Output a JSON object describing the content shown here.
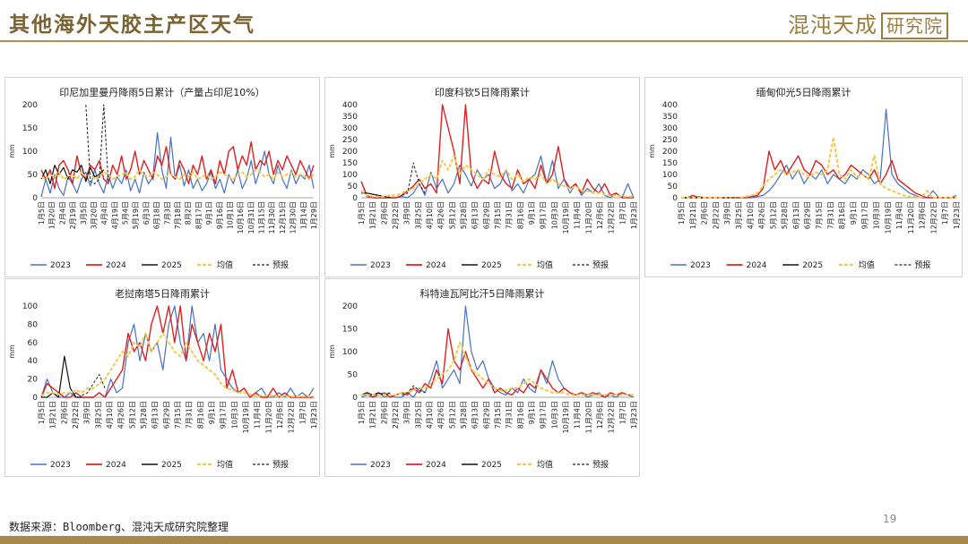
{
  "page": {
    "title": "其他海外天胶主产区天气",
    "logo_text": "混沌天成",
    "logo_box_text": "研究院",
    "source": "数据来源：Bloomberg、混沌天成研究院整理",
    "page_number": "19"
  },
  "legend_labels": [
    "2023",
    "2024",
    "2025",
    "均值",
    "预报"
  ],
  "colors": {
    "2023": "#4472c4",
    "2024": "#e02020",
    "2025": "#111111",
    "mean": "#f2c94c",
    "forecast": "#222222",
    "title": "#7a6232",
    "accent": "#a8884a"
  },
  "chart_data": [
    {
      "type": "line",
      "title": "印尼加里曼丹降雨5日累计（产量占印尼10%）",
      "ylabel": "mm",
      "ylim": [
        0,
        200
      ],
      "yticks": [
        0,
        50,
        100,
        150,
        200
      ],
      "x_tick_labels": [
        "1月5日",
        "1月20日",
        "2月4日",
        "2月19日",
        "3月5日",
        "3月20日",
        "4月4日",
        "4月19日",
        "5月4日",
        "5月19日",
        "6月3日",
        "6月18日",
        "7月3日",
        "7月18日",
        "8月2日",
        "8月17日",
        "9月1日",
        "9月16日",
        "10月1日",
        "10月16日",
        "10月31日",
        "11月15日",
        "11月30日",
        "12月15日",
        "12月30日",
        "1月14日",
        "1月29日"
      ],
      "series": [
        {
          "name": "2023",
          "values": [
            2,
            40,
            10,
            50,
            20,
            5,
            45,
            30,
            10,
            40,
            55,
            25,
            60,
            30,
            10,
            50,
            20,
            45,
            30,
            60,
            15,
            40,
            10,
            55,
            30,
            45,
            140,
            60,
            20,
            130,
            40,
            70,
            25,
            60,
            20,
            40,
            15,
            30,
            55,
            20,
            40,
            10,
            50,
            30,
            60,
            20,
            40,
            80,
            30,
            60,
            100,
            50,
            30,
            70,
            40,
            20,
            60,
            30,
            50,
            40,
            70,
            20
          ]
        },
        {
          "name": "2024",
          "values": [
            60,
            40,
            60,
            20,
            70,
            80,
            60,
            30,
            90,
            50,
            40,
            70,
            60,
            80,
            40,
            30,
            70,
            50,
            90,
            40,
            60,
            100,
            50,
            80,
            60,
            40,
            90,
            70,
            110,
            50,
            40,
            80,
            60,
            30,
            70,
            50,
            90,
            40,
            60,
            30,
            80,
            50,
            100,
            110,
            60,
            90,
            70,
            120,
            60,
            80,
            70,
            100,
            50,
            80,
            60,
            90,
            70,
            50,
            80,
            60,
            40,
            70
          ]
        },
        {
          "name": "2025",
          "values": [
            40,
            60,
            30,
            70,
            50,
            65,
            40,
            60,
            55,
            70,
            35,
            65,
            45,
            50,
            60
          ]
        },
        {
          "name": "均值",
          "values": [
            45,
            40,
            50,
            45,
            55,
            40,
            45,
            50,
            40,
            55,
            45,
            50,
            40,
            45,
            55,
            50,
            40,
            45,
            50,
            55,
            40,
            45,
            60,
            50,
            45,
            55,
            50,
            40,
            45,
            50,
            45,
            40,
            50,
            45,
            55,
            40,
            45,
            50,
            40,
            45,
            55,
            50,
            45,
            40,
            50,
            55,
            45,
            50,
            60,
            55,
            45,
            50,
            40,
            55,
            45,
            50,
            55,
            45,
            50,
            45,
            40,
            50
          ]
        },
        {
          "name": "预报",
          "values": [
            200,
            35,
            30,
            40,
            200,
            35
          ]
        }
      ]
    },
    {
      "type": "line",
      "title": "印度科钦5日降雨累计",
      "ylabel": "mm",
      "ylim": [
        0,
        400
      ],
      "yticks": [
        0,
        50,
        100,
        150,
        200,
        250,
        300,
        350,
        400
      ],
      "x_tick_labels": [
        "1月5日",
        "1月21日",
        "2月6日",
        "2月22日",
        "3月9日",
        "3月25日",
        "4月10日",
        "4月26日",
        "5月12日",
        "5月28日",
        "6月13日",
        "6月29日",
        "7月15日",
        "7月31日",
        "8月16日",
        "9月1日",
        "9月17日",
        "10月3日",
        "10月19日",
        "11月4日",
        "11月20日",
        "12月6日",
        "12月22日",
        "1月7日",
        "1月23日"
      ],
      "series": [
        {
          "name": "2023",
          "values": [
            70,
            10,
            0,
            0,
            0,
            0,
            0,
            5,
            0,
            20,
            60,
            10,
            110,
            40,
            80,
            20,
            60,
            140,
            100,
            50,
            120,
            80,
            100,
            40,
            60,
            120,
            30,
            60,
            20,
            80,
            100,
            180,
            60,
            160,
            40,
            80,
            20,
            60,
            10,
            40,
            20,
            60,
            10,
            0,
            20,
            0,
            60,
            0
          ]
        },
        {
          "name": "2024",
          "values": [
            70,
            5,
            0,
            0,
            0,
            0,
            0,
            10,
            30,
            50,
            80,
            40,
            60,
            20,
            400,
            300,
            200,
            60,
            400,
            100,
            40,
            80,
            60,
            200,
            100,
            60,
            40,
            120,
            60,
            80,
            40,
            140,
            60,
            100,
            220,
            80,
            40,
            60,
            20,
            80,
            40,
            20,
            60,
            10,
            20,
            0,
            0,
            0
          ]
        },
        {
          "name": "2025",
          "values": [
            20,
            20,
            15,
            10,
            5,
            2
          ]
        },
        {
          "name": "均值",
          "values": [
            30,
            10,
            5,
            5,
            5,
            10,
            10,
            20,
            30,
            40,
            60,
            80,
            100,
            80,
            160,
            120,
            180,
            100,
            140,
            120,
            100,
            80,
            120,
            100,
            90,
            120,
            80,
            100,
            70,
            90,
            80,
            100,
            60,
            80,
            60,
            50,
            40,
            50,
            30,
            30,
            20,
            20,
            15,
            10,
            10,
            5,
            5,
            5
          ]
        },
        {
          "name": "预报",
          "values": [
            10,
            20,
            150,
            60,
            20
          ]
        }
      ]
    },
    {
      "type": "line",
      "title": "缅甸仰光5日降雨累计",
      "ylabel": "mm",
      "ylim": [
        0,
        400
      ],
      "yticks": [
        0,
        50,
        100,
        150,
        200,
        250,
        300,
        350,
        400
      ],
      "x_tick_labels": [
        "1月5日",
        "1月21日",
        "2月6日",
        "2月22日",
        "3月9日",
        "3月25日",
        "4月10日",
        "4月26日",
        "5月12日",
        "5月28日",
        "6月13日",
        "6月29日",
        "7月15日",
        "7月31日",
        "8月16日",
        "9月1日",
        "9月17日",
        "10月3日",
        "10月19日",
        "11月4日",
        "11月20日",
        "12月6日",
        "12月22日",
        "1月7日",
        "1月23日"
      ],
      "series": [
        {
          "name": "2023",
          "values": [
            0,
            0,
            0,
            5,
            0,
            0,
            0,
            0,
            0,
            0,
            0,
            0,
            0,
            5,
            10,
            30,
            60,
            100,
            140,
            80,
            120,
            60,
            100,
            80,
            120,
            60,
            100,
            80,
            60,
            100,
            80,
            120,
            100,
            60,
            80,
            380,
            100,
            60,
            40,
            20,
            10,
            0,
            0,
            30,
            0,
            0,
            0,
            10
          ]
        },
        {
          "name": "2024",
          "values": [
            0,
            0,
            10,
            0,
            0,
            0,
            0,
            0,
            0,
            0,
            0,
            0,
            5,
            10,
            40,
            200,
            120,
            160,
            100,
            140,
            180,
            120,
            100,
            160,
            140,
            100,
            120,
            80,
            100,
            140,
            120,
            100,
            80,
            120,
            60,
            100,
            160,
            80,
            60,
            40,
            20,
            10,
            0,
            0,
            0,
            0,
            0,
            0
          ]
        },
        {
          "name": "2025",
          "values": [
            0,
            0,
            0,
            0,
            0
          ]
        },
        {
          "name": "均值",
          "values": [
            0,
            0,
            0,
            0,
            0,
            0,
            0,
            0,
            0,
            0,
            0,
            5,
            10,
            20,
            50,
            80,
            100,
            120,
            100,
            110,
            120,
            100,
            90,
            110,
            100,
            120,
            260,
            100,
            80,
            120,
            90,
            100,
            80,
            180,
            60,
            40,
            30,
            20,
            10,
            5,
            5,
            0,
            30,
            0,
            0,
            0,
            0,
            0
          ]
        },
        {
          "name": "预报",
          "values": [
            0,
            0,
            0,
            0
          ]
        }
      ]
    },
    {
      "type": "line",
      "title": "老挝南塔5日降雨累计",
      "ylabel": "mm",
      "ylim": [
        0,
        100
      ],
      "yticks": [
        0,
        20,
        40,
        60,
        80,
        100
      ],
      "x_tick_labels": [
        "1月5日",
        "1月21日",
        "2月6日",
        "2月22日",
        "3月9日",
        "3月25日",
        "4月10日",
        "4月26日",
        "5月12日",
        "5月28日",
        "6月13日",
        "6月29日",
        "7月15日",
        "7月31日",
        "8月16日",
        "9月1日",
        "9月17日",
        "10月3日",
        "10月19日",
        "11月4日",
        "11月20日",
        "12月6日",
        "12月22日",
        "1月7日",
        "1月23日"
      ],
      "series": [
        {
          "name": "2023",
          "values": [
            0,
            20,
            5,
            0,
            0,
            5,
            0,
            0,
            0,
            0,
            5,
            0,
            20,
            5,
            10,
            60,
            80,
            40,
            70,
            50,
            60,
            30,
            80,
            100,
            60,
            40,
            100,
            60,
            70,
            40,
            80,
            30,
            20,
            10,
            5,
            10,
            0,
            5,
            10,
            0,
            0,
            5,
            0,
            10,
            0,
            5,
            0,
            10
          ]
        },
        {
          "name": "2024",
          "values": [
            0,
            15,
            10,
            5,
            0,
            0,
            5,
            0,
            0,
            0,
            5,
            0,
            10,
            20,
            30,
            70,
            50,
            60,
            40,
            80,
            100,
            70,
            100,
            60,
            100,
            40,
            80,
            60,
            40,
            70,
            50,
            80,
            10,
            30,
            5,
            10,
            0,
            5,
            0,
            0,
            10,
            0,
            5,
            0,
            0,
            0,
            0,
            0
          ]
        },
        {
          "name": "2025",
          "values": [
            0,
            0,
            5,
            0,
            45,
            10,
            0,
            0
          ]
        },
        {
          "name": "均值",
          "values": [
            2,
            5,
            5,
            3,
            5,
            5,
            8,
            5,
            10,
            10,
            15,
            20,
            30,
            40,
            50,
            45,
            60,
            55,
            70,
            50,
            60,
            70,
            60,
            50,
            45,
            60,
            50,
            40,
            35,
            30,
            25,
            15,
            10,
            8,
            5,
            5,
            3,
            2,
            2,
            2,
            2,
            1,
            1,
            1,
            1,
            1,
            1,
            1
          ]
        },
        {
          "name": "预报",
          "values": [
            2,
            5,
            15,
            25,
            10
          ]
        }
      ]
    },
    {
      "type": "line",
      "title": "科特迪瓦阿比汗5日降雨累计",
      "ylabel": "mm",
      "ylim": [
        0,
        200
      ],
      "yticks": [
        0,
        50,
        100,
        150,
        200
      ],
      "x_tick_labels": [
        "1月5日",
        "1月21日",
        "2月6日",
        "2月22日",
        "3月9日",
        "3月25日",
        "4月10日",
        "4月26日",
        "5月12日",
        "5月28日",
        "6月13日",
        "6月29日",
        "7月15日",
        "7月31日",
        "8月16日",
        "9月1日",
        "9月17日",
        "10月3日",
        "10月19日",
        "11月4日",
        "11月20日",
        "12月6日",
        "12月22日",
        "1月7日",
        "1月23日"
      ],
      "series": [
        {
          "name": "2023",
          "values": [
            0,
            5,
            0,
            10,
            0,
            5,
            0,
            0,
            10,
            0,
            20,
            10,
            40,
            80,
            20,
            40,
            60,
            30,
            200,
            100,
            60,
            80,
            40,
            20,
            10,
            5,
            20,
            10,
            40,
            20,
            10,
            60,
            30,
            80,
            40,
            20,
            10,
            5,
            10,
            0,
            5,
            10,
            0,
            5,
            0,
            10,
            5,
            0
          ]
        },
        {
          "name": "2024",
          "values": [
            5,
            10,
            0,
            5,
            10,
            0,
            5,
            10,
            5,
            20,
            10,
            30,
            20,
            60,
            30,
            150,
            80,
            60,
            100,
            60,
            40,
            20,
            40,
            10,
            20,
            10,
            5,
            20,
            10,
            30,
            20,
            60,
            40,
            20,
            10,
            20,
            10,
            5,
            10,
            5,
            10,
            5,
            0,
            10,
            5,
            10,
            5,
            5
          ]
        },
        {
          "name": "2025",
          "values": [
            5,
            10,
            5,
            10,
            5,
            10
          ]
        },
        {
          "name": "均值",
          "values": [
            5,
            5,
            5,
            5,
            5,
            5,
            5,
            10,
            10,
            15,
            20,
            20,
            30,
            40,
            50,
            60,
            80,
            120,
            90,
            60,
            50,
            40,
            30,
            20,
            15,
            15,
            20,
            20,
            30,
            40,
            30,
            20,
            15,
            10,
            10,
            10,
            5,
            5,
            5,
            5,
            5,
            5,
            5,
            5,
            5,
            5,
            5,
            5
          ]
        },
        {
          "name": "预报",
          "values": [
            5,
            10,
            25,
            15,
            10
          ]
        }
      ]
    }
  ]
}
